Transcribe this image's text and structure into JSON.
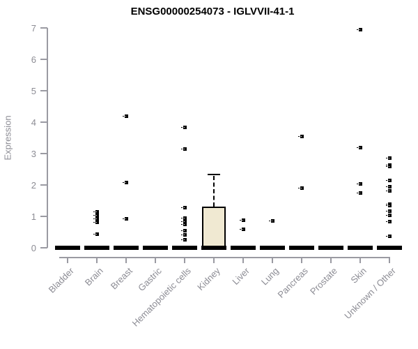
{
  "title": "ENSG00000254073 - IGLVVII-41-1",
  "colors": {
    "box_fill": "#f0e9d2",
    "box_border": "#000000",
    "axis": "#9a9aa2",
    "axis_text": "#8c8c94",
    "points": "#000000",
    "title_text": "#000000"
  },
  "chart_data": {
    "type": "boxplot",
    "title": "ENSG00000254073 - IGLVVII-41-1",
    "xlabel": "",
    "ylabel": "Expression",
    "ylim": [
      0,
      7
    ],
    "y_ticks": [
      0,
      1,
      2,
      3,
      4,
      5,
      6,
      7
    ],
    "grid": false,
    "legend": "none",
    "categories": [
      "Bladder",
      "Brain",
      "Breast",
      "Gastric",
      "Hematopoietic cells",
      "Kidney",
      "Liver",
      "Lung",
      "Pancreas",
      "Prostate",
      "Skin",
      "Unknown / Other"
    ],
    "series": [
      {
        "name": "Bladder",
        "box": {
          "min": 0,
          "q1": 0,
          "median": 0,
          "q3": 0,
          "max": 0
        },
        "outliers": []
      },
      {
        "name": "Brain",
        "box": {
          "min": 0,
          "q1": 0,
          "median": 0,
          "q3": 0,
          "max": 0
        },
        "outliers": [
          1.16,
          1.04,
          0.93,
          0.82,
          0.44
        ]
      },
      {
        "name": "Breast",
        "box": {
          "min": 0,
          "q1": 0,
          "median": 0,
          "q3": 0,
          "max": 0
        },
        "outliers": [
          4.2,
          2.09,
          0.93
        ]
      },
      {
        "name": "Gastric",
        "box": {
          "min": 0,
          "q1": 0,
          "median": 0,
          "q3": 0,
          "max": 0
        },
        "outliers": []
      },
      {
        "name": "Hematopoietic cells",
        "box": {
          "min": 0,
          "q1": 0,
          "median": 0,
          "q3": 0,
          "max": 0
        },
        "outliers": [
          3.84,
          3.16,
          1.29,
          0.96,
          0.84,
          0.76,
          0.56,
          0.42,
          0.27
        ]
      },
      {
        "name": "Kidney",
        "box": {
          "min": 0,
          "q1": 0,
          "median": 0,
          "q3": 1.31,
          "max": 2.33
        },
        "outliers": []
      },
      {
        "name": "Liver",
        "box": {
          "min": 0,
          "q1": 0,
          "median": 0,
          "q3": 0,
          "max": 0
        },
        "outliers": [
          0.89,
          0.6
        ]
      },
      {
        "name": "Lung",
        "box": {
          "min": 0,
          "q1": 0,
          "median": 0,
          "q3": 0,
          "max": 0
        },
        "outliers": [
          0.87
        ]
      },
      {
        "name": "Pancreas",
        "box": {
          "min": 0,
          "q1": 0,
          "median": 0,
          "q3": 0,
          "max": 0
        },
        "outliers": [
          3.56,
          1.91
        ]
      },
      {
        "name": "Prostate",
        "box": {
          "min": 0,
          "q1": 0,
          "median": 0,
          "q3": 0,
          "max": 0
        },
        "outliers": []
      },
      {
        "name": "Skin",
        "box": {
          "min": 0,
          "q1": 0,
          "median": 0,
          "q3": 0,
          "max": 0
        },
        "outliers": [
          6.96,
          3.2,
          2.04,
          1.76
        ]
      },
      {
        "name": "Unknown / Other",
        "box": {
          "min": 0,
          "q1": 0,
          "median": 0,
          "q3": 0,
          "max": 0
        },
        "outliers": [
          2.87,
          2.64,
          2.6,
          2.16,
          1.95,
          1.82,
          1.41,
          1.36,
          1.17,
          1.04,
          0.84,
          0.38
        ]
      }
    ]
  }
}
